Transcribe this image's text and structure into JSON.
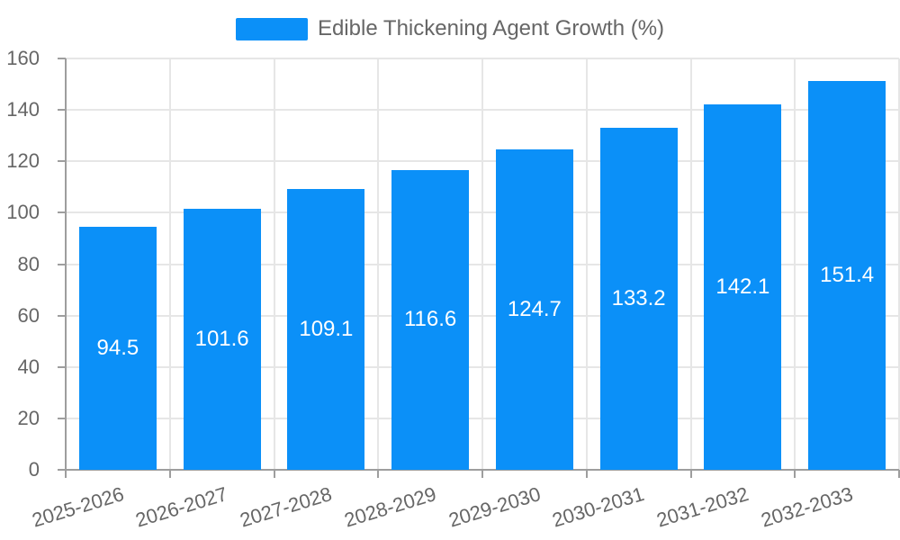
{
  "legend": {
    "label": "Edible Thickening Agent Growth (%)"
  },
  "chart_data": {
    "type": "bar",
    "title": "Edible Thickening Agent Growth (%)",
    "series_name": "Edible Thickening Agent Growth (%)",
    "categories": [
      "2025-2026",
      "2026-2027",
      "2027-2028",
      "2028-2029",
      "2029-2030",
      "2030-2031",
      "2031-2032",
      "2032-2033"
    ],
    "values": [
      94.5,
      101.6,
      109.1,
      116.6,
      124.7,
      133.2,
      142.1,
      151.4
    ],
    "value_labels": [
      "94.5",
      "101.6",
      "109.1",
      "116.6",
      "124.7",
      "133.2",
      "142.1",
      "151.4"
    ],
    "xlabel": "",
    "ylabel": "",
    "ylim": [
      0,
      160
    ],
    "yticks": [
      0,
      20,
      40,
      60,
      80,
      100,
      120,
      140,
      160
    ],
    "grid": true,
    "legend_position": "top",
    "value_label_position": "inside-center"
  },
  "colors": {
    "bar": "#0b90f8",
    "grid": "#e6e6e6",
    "axis": "#9e9e9e",
    "axis_text": "#666666",
    "legend_text": "#666666",
    "value_label": "#ffffff",
    "background": "#ffffff"
  }
}
